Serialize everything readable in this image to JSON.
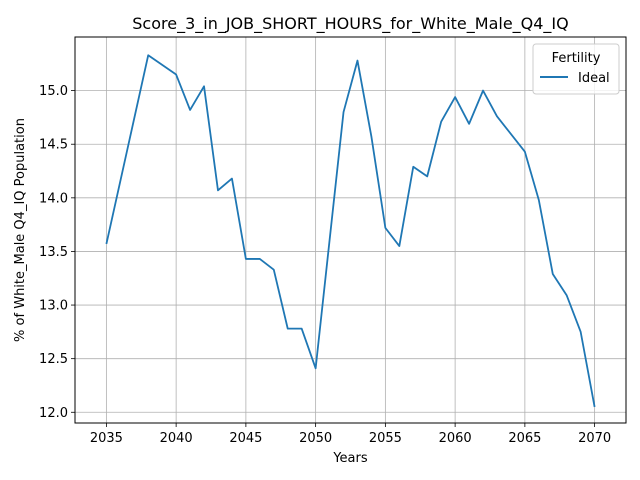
{
  "chart_data": {
    "type": "line",
    "title": "Score_3_in_JOB_SHORT_HOURS_for_White_Male_Q4_IQ",
    "xlabel": "Years",
    "ylabel": "% of White_Male Q4_IQ Population",
    "xlim": [
      2032.75,
      2072.25
    ],
    "ylim": [
      11.9,
      15.5
    ],
    "xticks": [
      2035,
      2040,
      2045,
      2050,
      2055,
      2060,
      2065,
      2070
    ],
    "yticks": [
      12.0,
      12.5,
      13.0,
      13.5,
      14.0,
      14.5,
      15.0
    ],
    "grid": true,
    "legend": {
      "title": "Fertility",
      "placement": "top-right"
    },
    "series": [
      {
        "name": "Ideal",
        "color": "#1f77b4",
        "x": [
          2035,
          2038,
          2040,
          2041,
          2042,
          2043,
          2044,
          2045,
          2046,
          2047,
          2048,
          2049,
          2050,
          2052,
          2053,
          2054,
          2055,
          2056,
          2057,
          2058,
          2059,
          2060,
          2061,
          2062,
          2063,
          2065,
          2066,
          2067,
          2068,
          2069,
          2070
        ],
        "y": [
          13.57,
          15.33,
          15.15,
          14.82,
          15.04,
          14.07,
          14.18,
          13.43,
          13.43,
          13.33,
          12.78,
          12.78,
          12.41,
          14.8,
          15.28,
          14.57,
          13.72,
          13.55,
          14.29,
          14.2,
          14.71,
          14.94,
          14.69,
          15.0,
          14.76,
          14.43,
          13.98,
          13.29,
          13.09,
          12.75,
          12.05
        ]
      }
    ]
  }
}
